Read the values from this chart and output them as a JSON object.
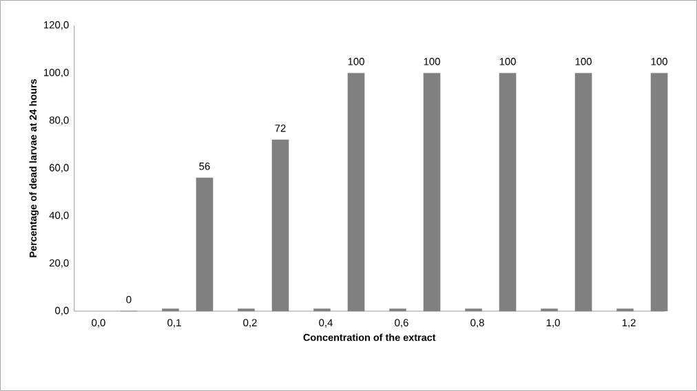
{
  "chart_data": {
    "type": "bar",
    "xlabel": "Concentration of the extract",
    "ylabel": "Percentage  of dead larvae at 24 hours",
    "categories": [
      "0,0",
      "0,1",
      "0,2",
      "0,4",
      "0,6",
      "0,8",
      "1,0",
      "1,2"
    ],
    "series": [
      {
        "color": "#808080",
        "values": [
          null,
          1,
          1,
          1,
          1,
          1,
          1,
          1
        ]
      },
      {
        "color": "#808080",
        "values": [
          0,
          56,
          72,
          100,
          100,
          100,
          100,
          100
        ],
        "value_labels": [
          "0",
          "56",
          "72",
          "100",
          "100",
          "100",
          "100",
          "100"
        ]
      }
    ],
    "ylim": [
      0,
      120
    ],
    "yticks": [
      {
        "value": 0,
        "label": "0,0"
      },
      {
        "value": 20,
        "label": "20,0"
      },
      {
        "value": 40,
        "label": "40,0"
      },
      {
        "value": 60,
        "label": "60,0"
      },
      {
        "value": 80,
        "label": "80,0"
      },
      {
        "value": 100,
        "label": "100,0"
      },
      {
        "value": 120,
        "label": "120,0"
      }
    ],
    "grid": false,
    "legend": false
  }
}
